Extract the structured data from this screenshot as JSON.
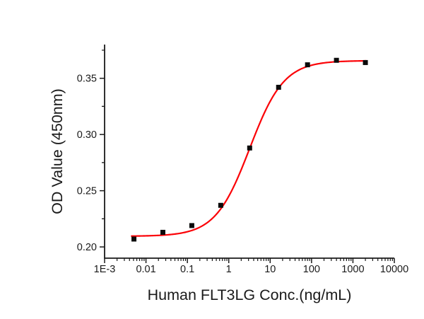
{
  "chart_data": {
    "type": "scatter",
    "title": "",
    "xlabel": "Human FLT3LG Conc.(ng/mL)",
    "ylabel": "OD Value (450nm)",
    "x_scale": "log",
    "y_scale": "linear",
    "xlim": [
      0.001,
      10000
    ],
    "ylim": [
      0.19,
      0.38
    ],
    "grid": false,
    "legend": null,
    "axis_color": "#1a1a1a",
    "x_major_ticks": [
      {
        "value": 0.001,
        "label": "1E-3"
      },
      {
        "value": 0.01,
        "label": "0.01"
      },
      {
        "value": 0.1,
        "label": "0.1"
      },
      {
        "value": 1,
        "label": "1"
      },
      {
        "value": 10,
        "label": "10"
      },
      {
        "value": 100,
        "label": "100"
      },
      {
        "value": 1000,
        "label": "1000"
      },
      {
        "value": 10000,
        "label": "10000"
      }
    ],
    "y_major_ticks": [
      {
        "value": 0.2,
        "label": "0.20"
      },
      {
        "value": 0.25,
        "label": "0.25"
      },
      {
        "value": 0.3,
        "label": "0.30"
      },
      {
        "value": 0.35,
        "label": "0.35"
      }
    ],
    "y_minor_step": 0.025,
    "series": [
      {
        "name": "4pl-fit-curve",
        "type": "line",
        "color": "#fb0207",
        "stroke_width": 2.2,
        "fit": {
          "model": "4PL",
          "bottom": 0.2095,
          "top": 0.3657,
          "ec50": 3.2,
          "hill": 1.05,
          "x_start": 0.0045,
          "x_end": 2100
        }
      },
      {
        "name": "measured-od",
        "type": "scatter",
        "marker": "square",
        "marker_size": 7,
        "color": "#0a0a0a",
        "points": [
          [
            0.00512,
            0.207
          ],
          [
            0.0256,
            0.213
          ],
          [
            0.128,
            0.219
          ],
          [
            0.64,
            0.237
          ],
          [
            3.2,
            0.288
          ],
          [
            16,
            0.342
          ],
          [
            80,
            0.362
          ],
          [
            400,
            0.366
          ],
          [
            2000,
            0.364
          ]
        ]
      }
    ]
  }
}
